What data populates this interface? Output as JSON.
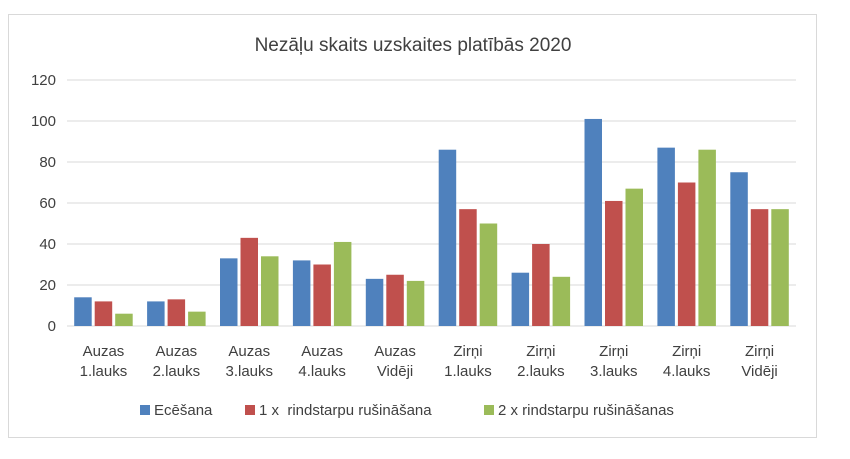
{
  "chart_data": {
    "type": "bar",
    "title": "Nezāļu skaits uzskaites platībās 2020",
    "xlabel": "",
    "ylabel": "",
    "ylim": [
      0,
      120
    ],
    "yticks": [
      0,
      20,
      40,
      60,
      80,
      100,
      120
    ],
    "grid": true,
    "legend_position": "bottom",
    "categories": [
      [
        "Auzas",
        "1.lauks"
      ],
      [
        "Auzas",
        "2.lauks"
      ],
      [
        "Auzas",
        "3.lauks"
      ],
      [
        "Auzas",
        "4.lauks"
      ],
      [
        "Auzas",
        "Vidēji"
      ],
      [
        "Zirņi",
        "1.lauks"
      ],
      [
        "Zirņi",
        "2.lauks"
      ],
      [
        "Zirņi",
        "3.lauks"
      ],
      [
        "Zirņi",
        "4.lauks"
      ],
      [
        "Zirņi",
        "Vidēji"
      ]
    ],
    "series": [
      {
        "name": "Ecēšana",
        "color": "#4F81BD",
        "values": [
          14,
          12,
          33,
          32,
          23,
          86,
          26,
          101,
          87,
          75
        ]
      },
      {
        "name": "1 x  rindstarpu rušināšana",
        "color": "#C0504D",
        "values": [
          12,
          13,
          43,
          30,
          25,
          57,
          40,
          61,
          70,
          57
        ]
      },
      {
        "name": "2 x rindstarpu rušināšanas",
        "color": "#9BBB59",
        "values": [
          6,
          7,
          34,
          41,
          22,
          50,
          24,
          67,
          86,
          57
        ]
      }
    ]
  }
}
